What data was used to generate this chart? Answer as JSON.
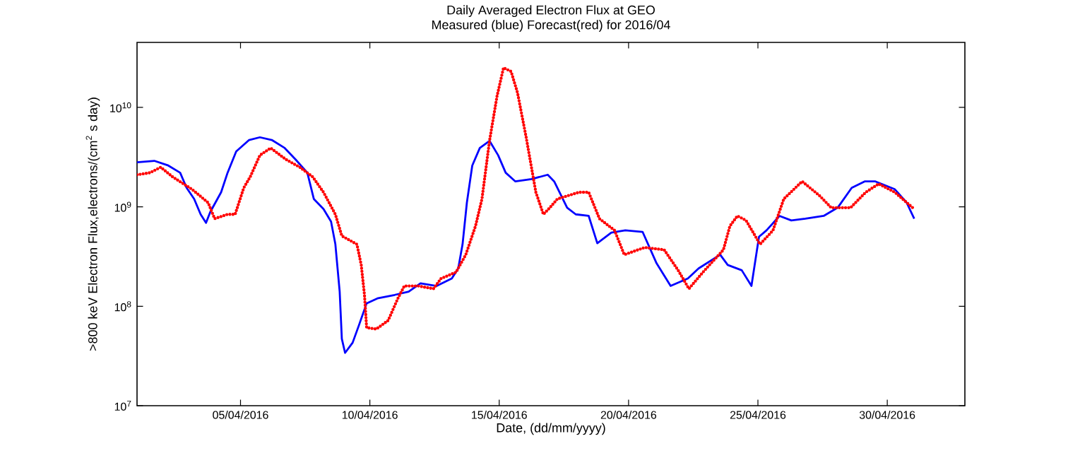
{
  "chart_data": {
    "type": "line",
    "title": "Daily Averaged Electron Flux at GEO",
    "subtitle": "Measured (blue) Forecast(red) for 2016/04",
    "xlabel": "Date, (dd/mm/yyyy)",
    "ylabel": ">800 keV Electron Flux,electrons/(cm$^{2}$ s day)",
    "log": true,
    "xlim": [
      "2016-04-01",
      "2016-05-03"
    ],
    "xticks": [
      {
        "value": "2016-04-05",
        "label": "05/04/2016"
      },
      {
        "value": "2016-04-10",
        "label": "10/04/2016"
      },
      {
        "value": "2016-04-15",
        "label": "15/04/2016"
      },
      {
        "value": "2016-04-20",
        "label": "20/04/2016"
      },
      {
        "value": "2016-04-25",
        "label": "25/04/2016"
      },
      {
        "value": "2016-04-30",
        "label": "30/04/2016"
      }
    ],
    "ylim": [
      10000000,
      45000000000
    ],
    "yticks": [
      {
        "value": 10000000,
        "label": "10$^{7}$"
      },
      {
        "value": 100000000,
        "label": "10$^{8}$"
      },
      {
        "value": 1000000000,
        "label": "10$^{9}$"
      },
      {
        "value": 10000000000,
        "label": "10$^{10}$"
      }
    ],
    "series": [
      {
        "color": "#0000ff",
        "line_style": "solid",
        "x": [
          "2016-04-01T00:00",
          "2016-04-01T16:00",
          "2016-04-02T05:00",
          "2016-04-02T16:00",
          "2016-04-02T22:00",
          "2016-04-03T05:00",
          "2016-04-03T11:00",
          "2016-04-03T16:00",
          "2016-04-03T20:00",
          "2016-04-04T06:00",
          "2016-04-04T12:00",
          "2016-04-04T20:00",
          "2016-04-05T08:00",
          "2016-04-05T18:00",
          "2016-04-06T05:00",
          "2016-04-06T17:00",
          "2016-04-07T03:00",
          "2016-04-07T14:00",
          "2016-04-07T20:00",
          "2016-04-08T05:00",
          "2016-04-08T12:00",
          "2016-04-08T16:00",
          "2016-04-08T20:00",
          "2016-04-08T22:00",
          "2016-04-09T01:00",
          "2016-04-09T08:00",
          "2016-04-09T14:00",
          "2016-04-09T21:00",
          "2016-04-10T07:00",
          "2016-04-10T23:00",
          "2016-04-11T12:00",
          "2016-04-11T23:00",
          "2016-04-12T14:00",
          "2016-04-13T04:00",
          "2016-04-13T10:00",
          "2016-04-13T14:00",
          "2016-04-13T18:00",
          "2016-04-13T23:00",
          "2016-04-14T06:00",
          "2016-04-14T15:00",
          "2016-04-14T23:00",
          "2016-04-15T06:00",
          "2016-04-15T15:00",
          "2016-04-16T06:00",
          "2016-04-16T21:00",
          "2016-04-17T03:00",
          "2016-04-17T15:00",
          "2016-04-17T23:00",
          "2016-04-18T11:00",
          "2016-04-18T19:00",
          "2016-04-19T08:00",
          "2016-04-19T21:00",
          "2016-04-20T13:00",
          "2016-04-21T02:00",
          "2016-04-21T15:00",
          "2016-04-22T07:00",
          "2016-04-22T17:00",
          "2016-04-23T13:00",
          "2016-04-23T20:00",
          "2016-04-24T09:00",
          "2016-04-24T18:00",
          "2016-04-25T01:00",
          "2016-04-25T08:00",
          "2016-04-25T20:00",
          "2016-04-26T07:00",
          "2016-04-26T20:00",
          "2016-04-27T13:00",
          "2016-04-28T02:00",
          "2016-04-28T15:00",
          "2016-04-29T03:00",
          "2016-04-29T13:00",
          "2016-04-30T07:00",
          "2016-04-30T18:00",
          "2016-05-01T01:00"
        ],
        "values": [
          2800000000.0,
          2900000000.0,
          2600000000.0,
          2200000000.0,
          1550000000.0,
          1200000000.0,
          840000000.0,
          690000000.0,
          890000000.0,
          1400000000.0,
          2200000000.0,
          3600000000.0,
          4700000000.0,
          5000000000.0,
          4700000000.0,
          3900000000.0,
          3000000000.0,
          2200000000.0,
          1200000000.0,
          950000000.0,
          710000000.0,
          420000000.0,
          140000000.0,
          47000000.0,
          34000000.0,
          43000000.0,
          65000000.0,
          107000000.0,
          120000000.0,
          130000000.0,
          140000000.0,
          170000000.0,
          160000000.0,
          190000000.0,
          240000000.0,
          420000000.0,
          1100000000.0,
          2600000000.0,
          3900000000.0,
          4600000000.0,
          3300000000.0,
          2200000000.0,
          1800000000.0,
          1900000000.0,
          2100000000.0,
          1800000000.0,
          980000000.0,
          840000000.0,
          810000000.0,
          430000000.0,
          550000000.0,
          580000000.0,
          560000000.0,
          270000000.0,
          160000000.0,
          190000000.0,
          240000000.0,
          330000000.0,
          260000000.0,
          230000000.0,
          160000000.0,
          500000000.0,
          580000000.0,
          810000000.0,
          730000000.0,
          760000000.0,
          810000000.0,
          980000000.0,
          1550000000.0,
          1800000000.0,
          1800000000.0,
          1500000000.0,
          1100000000.0,
          760000000.0
        ]
      },
      {
        "color": "#ff0000",
        "line_style": "dotted",
        "x": [
          "2016-04-01T00:00",
          "2016-04-01T12:00",
          "2016-04-01T22:00",
          "2016-04-02T09:00",
          "2016-04-03T03:00",
          "2016-04-03T18:00",
          "2016-04-04T00:00",
          "2016-04-04T12:00",
          "2016-04-04T19:00",
          "2016-04-05T03:00",
          "2016-04-05T09:00",
          "2016-04-05T18:00",
          "2016-04-06T04:00",
          "2016-04-06T18:00",
          "2016-04-07T07:00",
          "2016-04-07T19:00",
          "2016-04-08T05:00",
          "2016-04-08T16:00",
          "2016-04-08T22:00",
          "2016-04-09T12:00",
          "2016-04-09T16:00",
          "2016-04-09T19:00",
          "2016-04-09T21:00",
          "2016-04-10T06:00",
          "2016-04-10T17:00",
          "2016-04-11T02:00",
          "2016-04-11T08:00",
          "2016-04-11T21:00",
          "2016-04-12T11:00",
          "2016-04-12T18:00",
          "2016-04-13T08:00",
          "2016-04-13T17:00",
          "2016-04-14T02:00",
          "2016-04-14T08:00",
          "2016-04-14T15:00",
          "2016-04-14T22:00",
          "2016-04-15T04:00",
          "2016-04-15T11:00",
          "2016-04-15T17:00",
          "2016-04-16T01:00",
          "2016-04-16T10:00",
          "2016-04-16T17:00",
          "2016-04-16T23:00",
          "2016-04-17T06:00",
          "2016-04-18T02:00",
          "2016-04-18T11:00",
          "2016-04-18T21:00",
          "2016-04-19T11:00",
          "2016-04-19T20:00",
          "2016-04-20T15:00",
          "2016-04-21T09:00",
          "2016-04-21T22:00",
          "2016-04-22T08:00",
          "2016-04-22T21:00",
          "2016-04-23T16:00",
          "2016-04-23T22:00",
          "2016-04-24T05:00",
          "2016-04-24T13:00",
          "2016-04-25T02:00",
          "2016-04-25T14:00",
          "2016-04-26T00:00",
          "2016-04-26T17:00",
          "2016-04-27T09:00",
          "2016-04-27T20:00",
          "2016-04-28T14:00",
          "2016-04-29T04:00",
          "2016-04-29T16:00",
          "2016-04-30T07:00",
          "2016-05-01T01:00"
        ],
        "values": [
          2100000000.0,
          2200000000.0,
          2500000000.0,
          2000000000.0,
          1500000000.0,
          1100000000.0,
          760000000.0,
          840000000.0,
          840000000.0,
          1550000000.0,
          2000000000.0,
          3300000000.0,
          3900000000.0,
          3000000000.0,
          2500000000.0,
          2000000000.0,
          1400000000.0,
          840000000.0,
          510000000.0,
          420000000.0,
          260000000.0,
          130000000.0,
          61000000.0,
          59000000.0,
          72000000.0,
          120000000.0,
          160000000.0,
          160000000.0,
          150000000.0,
          190000000.0,
          220000000.0,
          330000000.0,
          640000000.0,
          1200000000.0,
          4600000000.0,
          13000000000.0,
          25000000000.0,
          23000000000.0,
          14000000000.0,
          5000000000.0,
          1400000000.0,
          840000000.0,
          980000000.0,
          1200000000.0,
          1400000000.0,
          1400000000.0,
          760000000.0,
          580000000.0,
          330000000.0,
          390000000.0,
          370000000.0,
          230000000.0,
          150000000.0,
          220000000.0,
          370000000.0,
          640000000.0,
          810000000.0,
          730000000.0,
          420000000.0,
          580000000.0,
          1200000000.0,
          1800000000.0,
          1300000000.0,
          980000000.0,
          980000000.0,
          1400000000.0,
          1700000000.0,
          1400000000.0,
          950000000.0
        ]
      }
    ]
  }
}
